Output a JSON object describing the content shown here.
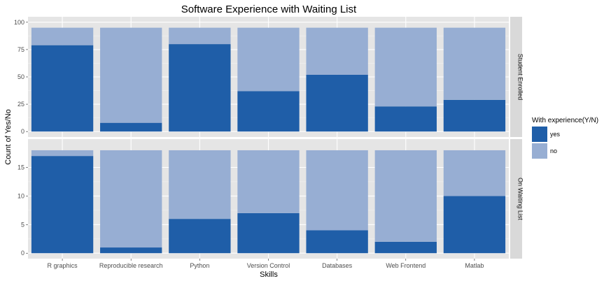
{
  "chart_data": {
    "type": "bar",
    "stacked": true,
    "faceted": true,
    "title": "Software Experience with Waiting List",
    "xlabel": "Skills",
    "ylabel": "Count of Yes/No",
    "categories": [
      "R graphics",
      "Reproducible research",
      "Python",
      "Version Control",
      "Databases",
      "Web Frontend",
      "Matlab"
    ],
    "legend": {
      "title": "With experience(Y/N)",
      "position": "right",
      "entries": [
        {
          "label": "yes",
          "color": "#1f5ea8"
        },
        {
          "label": "no",
          "color": "#97aed3"
        }
      ]
    },
    "facets": [
      {
        "label": "Student Enrolled",
        "ylim": [
          0,
          100
        ],
        "yticks": [
          0,
          25,
          50,
          75,
          100
        ],
        "series": [
          {
            "name": "yes",
            "values": [
              79,
              8,
              80,
              37,
              52,
              23,
              29
            ]
          },
          {
            "name": "no",
            "values": [
              16,
              87,
              15,
              58,
              43,
              72,
              66
            ]
          }
        ]
      },
      {
        "label": "On Waiting List",
        "ylim": [
          0,
          19
        ],
        "yticks": [
          0,
          5,
          10,
          15
        ],
        "series": [
          {
            "name": "yes",
            "values": [
              17,
              1,
              6,
              7,
              4,
              2,
              10
            ]
          },
          {
            "name": "no",
            "values": [
              1,
              17,
              12,
              11,
              14,
              16,
              8
            ]
          }
        ]
      }
    ],
    "grid": true,
    "panel_background": "#e5e5e5",
    "strip_background": "#d9d9d9"
  }
}
